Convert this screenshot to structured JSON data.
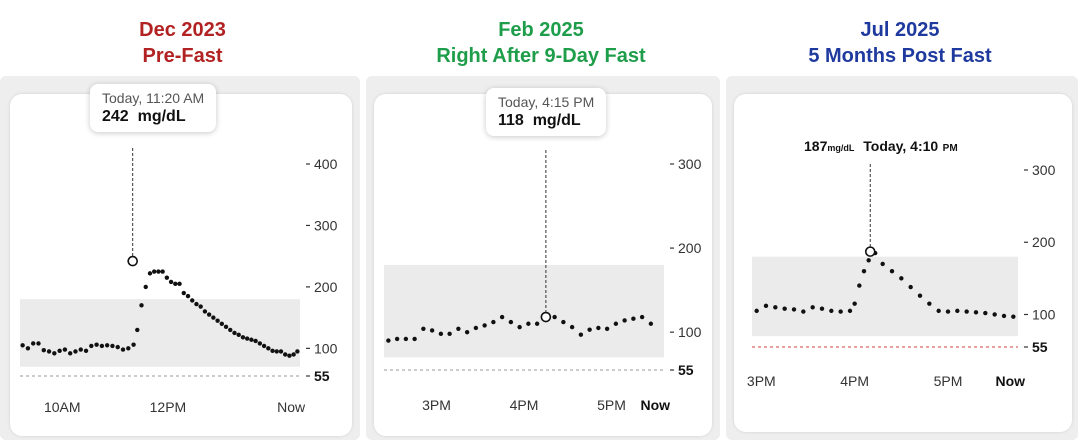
{
  "panels": [
    {
      "heading_line1": "Dec 2023",
      "heading_line2": "Pre-Fast",
      "heading_color": "#b22222",
      "tooltip": {
        "time": "Today, 11:20 AM",
        "value": "242",
        "unit": "mg/dL"
      },
      "chart_data": {
        "type": "scatter",
        "yticks": [
          400,
          300,
          200,
          100,
          55
        ],
        "ytick_labels": [
          "400",
          "300",
          "200",
          "100",
          "55"
        ],
        "xtick_labels": [
          "10AM",
          "12PM",
          "Now"
        ],
        "xticks_time": [
          10.0,
          12.0,
          14.333
        ],
        "x_range": [
          9.2,
          14.5
        ],
        "y_range": [
          55,
          400
        ],
        "target_range": [
          70,
          180
        ],
        "low_line": 55,
        "highlight": {
          "x": 11.333,
          "y": 242
        },
        "points": [
          [
            9.25,
            105
          ],
          [
            9.35,
            100
          ],
          [
            9.45,
            108
          ],
          [
            9.55,
            108
          ],
          [
            9.65,
            97
          ],
          [
            9.75,
            95
          ],
          [
            9.85,
            92
          ],
          [
            9.95,
            96
          ],
          [
            10.05,
            98
          ],
          [
            10.15,
            92
          ],
          [
            10.25,
            95
          ],
          [
            10.35,
            98
          ],
          [
            10.45,
            96
          ],
          [
            10.55,
            104
          ],
          [
            10.65,
            106
          ],
          [
            10.75,
            104
          ],
          [
            10.85,
            105
          ],
          [
            10.95,
            104
          ],
          [
            11.05,
            102
          ],
          [
            11.15,
            98
          ],
          [
            11.25,
            100
          ],
          [
            11.35,
            106
          ],
          [
            11.42,
            130
          ],
          [
            11.5,
            170
          ],
          [
            11.58,
            200
          ],
          [
            11.66,
            222
          ],
          [
            11.74,
            225
          ],
          [
            11.82,
            225
          ],
          [
            11.9,
            225
          ],
          [
            11.98,
            215
          ],
          [
            12.06,
            208
          ],
          [
            12.14,
            205
          ],
          [
            12.22,
            205
          ],
          [
            12.3,
            190
          ],
          [
            12.38,
            185
          ],
          [
            12.46,
            178
          ],
          [
            12.54,
            172
          ],
          [
            12.62,
            168
          ],
          [
            12.7,
            160
          ],
          [
            12.78,
            155
          ],
          [
            12.86,
            150
          ],
          [
            12.94,
            145
          ],
          [
            13.02,
            140
          ],
          [
            13.1,
            135
          ],
          [
            13.18,
            130
          ],
          [
            13.26,
            125
          ],
          [
            13.34,
            122
          ],
          [
            13.42,
            118
          ],
          [
            13.5,
            116
          ],
          [
            13.58,
            114
          ],
          [
            13.66,
            112
          ],
          [
            13.74,
            108
          ],
          [
            13.82,
            104
          ],
          [
            13.9,
            100
          ],
          [
            13.98,
            96
          ],
          [
            14.06,
            95
          ],
          [
            14.14,
            95
          ],
          [
            14.22,
            90
          ],
          [
            14.3,
            88
          ],
          [
            14.38,
            90
          ],
          [
            14.45,
            95
          ]
        ]
      }
    },
    {
      "heading_line1": "Feb 2025",
      "heading_line2": "Right After 9-Day Fast",
      "heading_color": "#1e9e4a",
      "tooltip": {
        "time": "Today, 4:15 PM",
        "value": "118",
        "unit": "mg/dL"
      },
      "chart_data": {
        "type": "scatter",
        "yticks": [
          300,
          200,
          100,
          55
        ],
        "ytick_labels": [
          "300",
          "200",
          "100",
          "55"
        ],
        "xtick_labels": [
          "3PM",
          "4PM",
          "5PM",
          "Now"
        ],
        "xticks_time": [
          15.0,
          16.0,
          17.0,
          17.5
        ],
        "x_range": [
          14.4,
          17.6
        ],
        "y_range": [
          55,
          300
        ],
        "target_range": [
          70,
          180
        ],
        "low_line": 55,
        "highlight": {
          "x": 16.25,
          "y": 118
        },
        "points": [
          [
            14.45,
            90
          ],
          [
            14.55,
            92
          ],
          [
            14.65,
            92
          ],
          [
            14.75,
            92
          ],
          [
            14.85,
            104
          ],
          [
            14.95,
            102
          ],
          [
            15.05,
            98
          ],
          [
            15.15,
            98
          ],
          [
            15.25,
            104
          ],
          [
            15.35,
            100
          ],
          [
            15.45,
            105
          ],
          [
            15.55,
            108
          ],
          [
            15.65,
            112
          ],
          [
            15.75,
            118
          ],
          [
            15.85,
            112
          ],
          [
            15.95,
            106
          ],
          [
            16.05,
            110
          ],
          [
            16.15,
            110
          ],
          [
            16.25,
            115
          ],
          [
            16.35,
            118
          ],
          [
            16.45,
            112
          ],
          [
            16.55,
            106
          ],
          [
            16.65,
            97
          ],
          [
            16.75,
            103
          ],
          [
            16.85,
            105
          ],
          [
            16.95,
            104
          ],
          [
            17.05,
            110
          ],
          [
            17.15,
            114
          ],
          [
            17.25,
            116
          ],
          [
            17.35,
            118
          ],
          [
            17.45,
            110
          ]
        ]
      }
    },
    {
      "heading_line1": "Jul 2025",
      "heading_line2": "5 Months Post Fast",
      "heading_color": "#1f3a9e",
      "tooltip": {
        "value": "187",
        "unit": "mg/dL",
        "time_main": "Today, 4:10",
        "time_suffix": "PM"
      },
      "chart_data": {
        "type": "scatter",
        "yticks": [
          300,
          200,
          100,
          55
        ],
        "ytick_labels": [
          "300",
          "200",
          "100",
          "55"
        ],
        "xtick_labels": [
          "3PM",
          "4PM",
          "5PM",
          "Now"
        ],
        "xticks_time": [
          15.0,
          16.0,
          17.0,
          17.667
        ],
        "x_range": [
          14.9,
          17.75
        ],
        "y_range": [
          55,
          300
        ],
        "target_range": [
          70,
          180
        ],
        "low_line": 55,
        "highlight": {
          "x": 16.167,
          "y": 187
        },
        "points": [
          [
            14.95,
            105
          ],
          [
            15.05,
            112
          ],
          [
            15.15,
            110
          ],
          [
            15.25,
            108
          ],
          [
            15.35,
            107
          ],
          [
            15.45,
            104
          ],
          [
            15.55,
            110
          ],
          [
            15.65,
            108
          ],
          [
            15.75,
            105
          ],
          [
            15.85,
            104
          ],
          [
            15.95,
            105
          ],
          [
            16.0,
            115
          ],
          [
            16.05,
            140
          ],
          [
            16.1,
            160
          ],
          [
            16.15,
            175
          ],
          [
            16.22,
            185
          ],
          [
            16.3,
            170
          ],
          [
            16.4,
            160
          ],
          [
            16.5,
            150
          ],
          [
            16.6,
            138
          ],
          [
            16.7,
            126
          ],
          [
            16.8,
            115
          ],
          [
            16.9,
            105
          ],
          [
            17.0,
            104
          ],
          [
            17.1,
            105
          ],
          [
            17.2,
            104
          ],
          [
            17.3,
            103
          ],
          [
            17.4,
            102
          ],
          [
            17.5,
            100
          ],
          [
            17.6,
            98
          ],
          [
            17.7,
            97
          ]
        ]
      }
    }
  ]
}
